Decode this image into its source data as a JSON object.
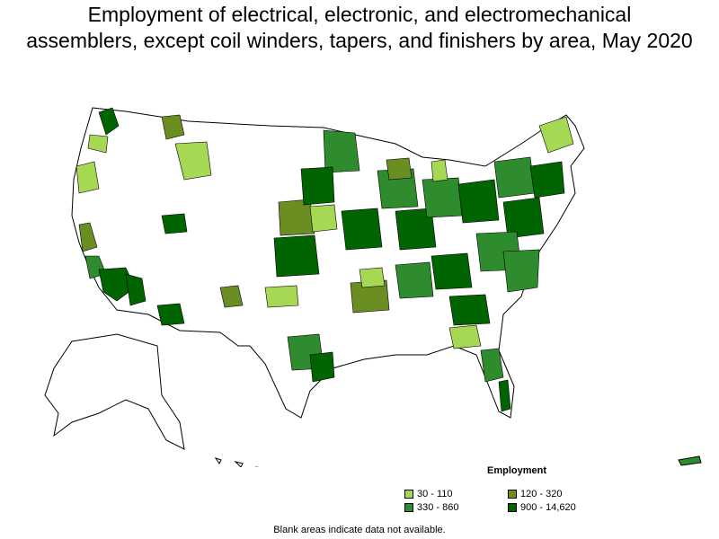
{
  "title_line1": "Employment of electrical, electronic, and electromechanical",
  "title_line2": "assemblers, except coil winders, tapers, and finishers by area, May 2020",
  "legend": {
    "title": "Employment",
    "items": [
      {
        "label": "30 - 110",
        "color": "#a6d854"
      },
      {
        "label": "120 - 320",
        "color": "#6b8e23"
      },
      {
        "label": "330 - 860",
        "color": "#2e8b2e"
      },
      {
        "label": "900 - 14,620",
        "color": "#006400"
      }
    ]
  },
  "note": "Blank areas indicate data not available.",
  "colors": {
    "outline": "#000000",
    "blank": "#ffffff"
  }
}
